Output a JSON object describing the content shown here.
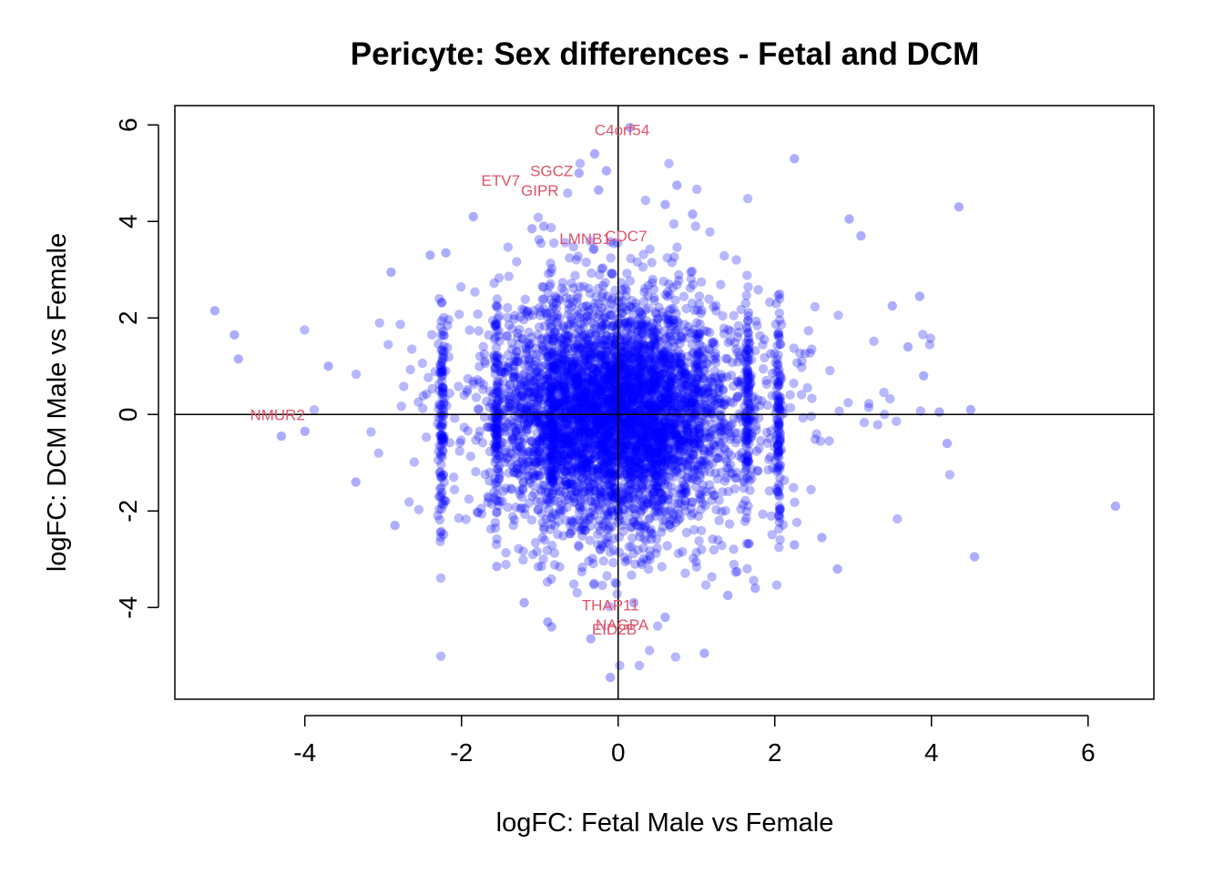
{
  "chart_data": {
    "type": "scatter",
    "title": "Pericyte: Sex differences - Fetal and DCM",
    "xlabel": "logFC: Fetal Male vs Female",
    "ylabel": "logFC: DCM Male vs Female",
    "xlim": [
      -5.66,
      6.84
    ],
    "ylim": [
      -5.9,
      6.4
    ],
    "x_ticks": [
      -4,
      -2,
      0,
      2,
      4,
      6
    ],
    "y_ticks": [
      -4,
      -2,
      0,
      2,
      4,
      6
    ],
    "x_tick_labels": [
      "-4",
      "-2",
      "0",
      "2",
      "4",
      "6"
    ],
    "y_tick_labels": [
      "-4",
      "-2",
      "0",
      "2",
      "4",
      "6"
    ],
    "reference_lines": {
      "h": 0,
      "v": 0
    },
    "point_color": "#0000ff",
    "label_color": "#df536b",
    "axis_color": "#000000",
    "grid": false,
    "background_cloud": {
      "n": 5200,
      "x_sd": 0.72,
      "y_sd": 1.15,
      "seed": 7,
      "x_tie_values": [
        -2.25,
        -1.55,
        -0.85,
        1.65,
        2.05
      ],
      "description_note": "dense bivariate cloud of genes centred at (0, 0)"
    },
    "points": [
      {
        "x": -5.15,
        "y": 2.15
      },
      {
        "x": -4.9,
        "y": 1.65
      },
      {
        "x": -4.85,
        "y": 1.15
      },
      {
        "x": -4.3,
        "y": -0.45
      },
      {
        "x": -4.0,
        "y": -0.35
      },
      {
        "x": -3.7,
        "y": 1.0
      },
      {
        "x": -3.35,
        "y": -1.4
      },
      {
        "x": -2.9,
        "y": 2.95
      },
      {
        "x": -2.85,
        "y": -2.3
      },
      {
        "x": -2.4,
        "y": 3.3
      },
      {
        "x": -2.2,
        "y": 3.35
      },
      {
        "x": -1.85,
        "y": 4.1
      },
      {
        "x": -1.1,
        "y": 3.85
      },
      {
        "x": -0.95,
        "y": 3.9
      },
      {
        "x": -0.5,
        "y": 5.0
      },
      {
        "x": -0.3,
        "y": 5.4
      },
      {
        "x": -0.25,
        "y": 4.65
      },
      {
        "x": -0.15,
        "y": 5.05
      },
      {
        "x": 0.15,
        "y": 5.95
      },
      {
        "x": 0.75,
        "y": 4.75
      },
      {
        "x": 0.6,
        "y": 4.35
      },
      {
        "x": 0.95,
        "y": 4.15
      },
      {
        "x": 2.25,
        "y": 5.3
      },
      {
        "x": 2.95,
        "y": 4.05
      },
      {
        "x": 3.1,
        "y": 3.7
      },
      {
        "x": 4.35,
        "y": 4.3
      },
      {
        "x": 3.5,
        "y": 2.25
      },
      {
        "x": 3.85,
        "y": 2.45
      },
      {
        "x": 3.7,
        "y": 1.4
      },
      {
        "x": 3.9,
        "y": 0.8
      },
      {
        "x": 4.1,
        "y": 0.05
      },
      {
        "x": 4.5,
        "y": 0.1
      },
      {
        "x": 4.2,
        "y": -0.6
      },
      {
        "x": 6.35,
        "y": -1.9
      },
      {
        "x": 4.55,
        "y": -2.95
      },
      {
        "x": 2.8,
        "y": -3.2
      },
      {
        "x": 2.6,
        "y": -2.55
      },
      {
        "x": 2.25,
        "y": -2.7
      },
      {
        "x": 1.1,
        "y": -4.95
      },
      {
        "x": 0.6,
        "y": -4.2
      },
      {
        "x": 0.2,
        "y": -3.9
      },
      {
        "x": -0.1,
        "y": -5.45
      },
      {
        "x": -0.35,
        "y": -4.65
      },
      {
        "x": -0.85,
        "y": -4.4
      },
      {
        "x": -0.9,
        "y": -4.3
      },
      {
        "x": -1.2,
        "y": -3.9
      },
      {
        "x": -1.55,
        "y": -3.15
      },
      {
        "x": 1.75,
        "y": -3.6
      },
      {
        "x": 1.4,
        "y": -3.75
      },
      {
        "x": 2.05,
        "y": -2.1
      }
    ],
    "labeled_genes": [
      {
        "label": "C4orf54",
        "x": 0.05,
        "y": 5.9
      },
      {
        "label": "SGCZ",
        "x": -0.85,
        "y": 5.05
      },
      {
        "label": "ETV7",
        "x": -1.5,
        "y": 4.85
      },
      {
        "label": "GIPR",
        "x": -1.0,
        "y": 4.65
      },
      {
        "label": "LMNB1",
        "x": -0.42,
        "y": 3.65
      },
      {
        "label": "CDC7",
        "x": 0.1,
        "y": 3.7
      },
      {
        "label": "NMUR2",
        "x": -4.35,
        "y": 0.0
      },
      {
        "label": "THAP11",
        "x": -0.1,
        "y": -3.95
      },
      {
        "label": "NAGPA",
        "x": 0.05,
        "y": -4.35
      },
      {
        "label": "EID2B",
        "x": -0.05,
        "y": -4.45
      }
    ]
  }
}
